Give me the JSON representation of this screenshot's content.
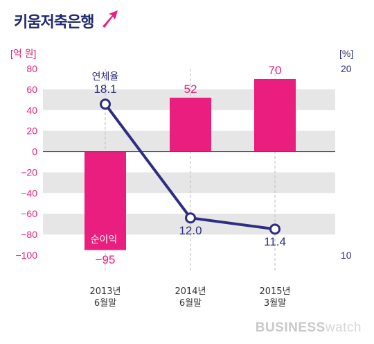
{
  "brand": {
    "name": "키움저축은행",
    "mark": "K"
  },
  "footer": {
    "brand_left": "BUSINESS",
    "brand_right": "watch"
  },
  "colors": {
    "bar": "#e91e7e",
    "line": "#2e2d82",
    "band": "#e6e6e6",
    "left_axis": "#e91e7e",
    "right_axis": "#2e2d82"
  },
  "chart_data": {
    "type": "bar",
    "categories": [
      [
        "2013년",
        "6월말"
      ],
      [
        "2014년",
        "6월말"
      ],
      [
        "2015년",
        "3월말"
      ]
    ],
    "series": [
      {
        "name": "순이익",
        "values": [
          -95,
          52,
          70
        ],
        "axis": "left",
        "kind": "bar"
      },
      {
        "name": "연체율",
        "values": [
          18.1,
          12.0,
          11.4
        ],
        "axis": "right",
        "kind": "line"
      }
    ],
    "y_left": {
      "unit": "[억 원]",
      "ylim": [
        -100,
        80
      ],
      "ticks": [
        80,
        60,
        40,
        20,
        0,
        -20,
        -40,
        -60,
        -80,
        -100
      ]
    },
    "y_right": {
      "unit": "[%]",
      "ylim": [
        10,
        20
      ],
      "ticks": [
        20,
        10
      ]
    },
    "bar_labels": [
      "−95",
      "52",
      "70"
    ],
    "line_labels": [
      "18.1",
      "12.0",
      "11.4"
    ],
    "grid": "alternating horizontal bands"
  }
}
